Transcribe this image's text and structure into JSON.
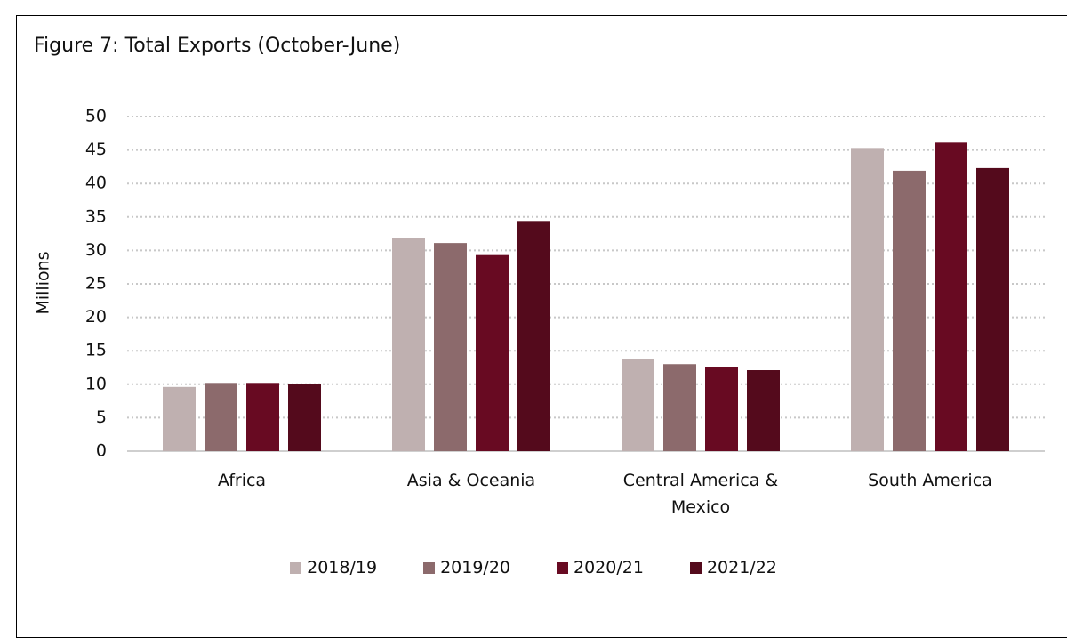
{
  "chart_data": {
    "type": "bar",
    "title": "Figure 7: Total Exports (October-June)",
    "y_label": "Millions",
    "categories": [
      "Africa",
      "Asia & Oceania",
      "Central America & Mexico",
      "South America"
    ],
    "series": [
      {
        "name": "2018/19",
        "color": "#bfb0b0",
        "values": [
          9.6,
          31.9,
          13.8,
          45.3
        ]
      },
      {
        "name": "2019/20",
        "color": "#8c6a6c",
        "values": [
          10.2,
          31.1,
          13.0,
          41.9
        ]
      },
      {
        "name": "2020/21",
        "color": "#680a22",
        "values": [
          10.2,
          29.3,
          12.6,
          46.1
        ]
      },
      {
        "name": "2021/22",
        "color": "#540a1c",
        "values": [
          10.0,
          34.4,
          12.1,
          42.3
        ]
      }
    ],
    "ylim": [
      0,
      50
    ],
    "yticks": [
      0,
      5,
      10,
      15,
      20,
      25,
      30,
      35,
      40,
      45,
      50
    ],
    "grid": true,
    "legend": "bottom"
  }
}
